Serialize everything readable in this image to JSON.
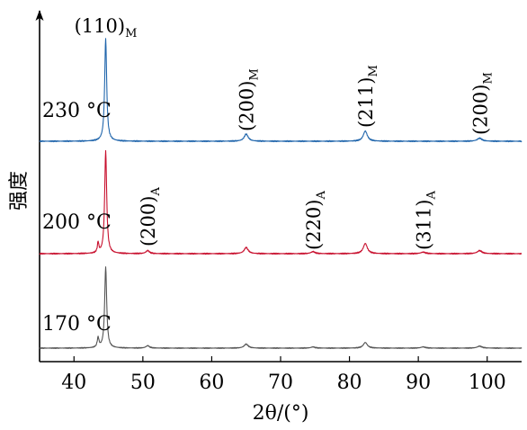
{
  "chart_data": {
    "type": "line",
    "xlabel": "2θ/(°)",
    "ylabel": "强度",
    "xlim": [
      35,
      105
    ],
    "xticks": [
      40,
      50,
      60,
      70,
      80,
      90,
      100
    ],
    "grid": false,
    "legend": "none",
    "series": [
      {
        "name": "230 °C",
        "color": "#2166ac",
        "peaks": [
          {
            "x": 44.6,
            "height": 100,
            "width": 0.35
          },
          {
            "x": 65.0,
            "height": 7,
            "width": 0.7
          },
          {
            "x": 82.3,
            "height": 10,
            "width": 0.7
          },
          {
            "x": 98.9,
            "height": 3,
            "width": 0.8
          }
        ],
        "annotations": [
          {
            "text": "(110)",
            "sub": "M",
            "x": 44.6
          },
          {
            "text": "(200)",
            "sub": "M",
            "x": 65.0
          },
          {
            "text": "(211)",
            "sub": "M",
            "x": 82.3
          },
          {
            "text": "(200)",
            "sub": "M",
            "x": 98.9
          }
        ]
      },
      {
        "name": "200 °C",
        "color": "#c8102e",
        "peaks": [
          {
            "x": 43.5,
            "height": 10,
            "width": 0.25
          },
          {
            "x": 44.6,
            "height": 100,
            "width": 0.35
          },
          {
            "x": 50.7,
            "height": 3,
            "width": 0.6
          },
          {
            "x": 65.0,
            "height": 6,
            "width": 0.7
          },
          {
            "x": 74.7,
            "height": 2,
            "width": 0.7
          },
          {
            "x": 82.3,
            "height": 10,
            "width": 0.7
          },
          {
            "x": 90.7,
            "height": 1.5,
            "width": 0.8
          },
          {
            "x": 98.9,
            "height": 3,
            "width": 0.8
          }
        ],
        "annotations": [
          {
            "text": "(200)",
            "sub": "A",
            "x": 50.7
          },
          {
            "text": "(220)",
            "sub": "A",
            "x": 74.7
          },
          {
            "text": "(311)",
            "sub": "A",
            "x": 90.7
          }
        ]
      },
      {
        "name": "170 °C",
        "color": "#555555",
        "peaks": [
          {
            "x": 43.5,
            "height": 12,
            "width": 0.3
          },
          {
            "x": 44.6,
            "height": 100,
            "width": 0.35
          },
          {
            "x": 50.7,
            "height": 3,
            "width": 0.6
          },
          {
            "x": 65.0,
            "height": 5,
            "width": 0.7
          },
          {
            "x": 74.7,
            "height": 1.5,
            "width": 0.7
          },
          {
            "x": 82.3,
            "height": 7,
            "width": 0.7
          },
          {
            "x": 90.7,
            "height": 1.5,
            "width": 0.8
          },
          {
            "x": 98.9,
            "height": 2.5,
            "width": 0.8
          }
        ],
        "annotations": []
      }
    ]
  }
}
